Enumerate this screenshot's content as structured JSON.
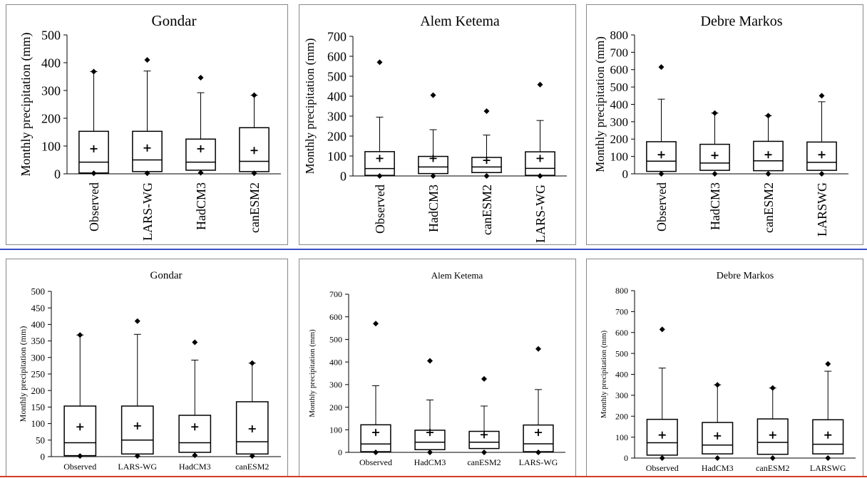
{
  "colors": {
    "frame": "#888888",
    "divider_blue": "#3a4fc4",
    "divider_red": "#d43a2a",
    "ink": "#000000"
  },
  "chart_data": [
    {
      "type": "box",
      "title": "Gondar",
      "ylabel": "Monthly precipitation (mm)",
      "ylim": [
        0,
        500
      ],
      "yticks": [
        0,
        100,
        200,
        300,
        400,
        500
      ],
      "categories": [
        "Observed",
        "LARS-WG",
        "HadCM3",
        "canESM2"
      ],
      "boxes": [
        {
          "min": 2,
          "q1": 3,
          "median": 42,
          "q3": 153,
          "whisker_high": 368,
          "mean": 90,
          "max": 368
        },
        {
          "min": 2,
          "q1": 8,
          "median": 50,
          "q3": 153,
          "whisker_high": 370,
          "mean": 93,
          "max": 410
        },
        {
          "min": 4,
          "q1": 13,
          "median": 42,
          "q3": 125,
          "whisker_high": 292,
          "mean": 90,
          "max": 346
        },
        {
          "min": 2,
          "q1": 8,
          "median": 45,
          "q3": 166,
          "whisker_high": 283,
          "mean": 84,
          "max": 283
        }
      ]
    },
    {
      "type": "box",
      "title": "Alem Ketema",
      "ylabel": "Monthly precipitation (mm)",
      "ylim": [
        0,
        700
      ],
      "yticks": [
        0,
        100,
        200,
        300,
        400,
        500,
        600,
        700
      ],
      "categories": [
        "Observed",
        "HadCM3",
        "canESM2",
        "LARS-WG"
      ],
      "boxes": [
        {
          "min": 0,
          "q1": 3,
          "median": 37,
          "q3": 122,
          "whisker_high": 295,
          "mean": 88,
          "max": 570
        },
        {
          "min": 0,
          "q1": 12,
          "median": 45,
          "q3": 98,
          "whisker_high": 232,
          "mean": 88,
          "max": 405
        },
        {
          "min": 0,
          "q1": 17,
          "median": 45,
          "q3": 93,
          "whisker_high": 205,
          "mean": 78,
          "max": 325
        },
        {
          "min": 0,
          "q1": 3,
          "median": 38,
          "q3": 121,
          "whisker_high": 278,
          "mean": 88,
          "max": 458
        }
      ]
    },
    {
      "type": "box",
      "title": "Debre Markos",
      "ylabel": "Monthly precipitation (mm)",
      "ylim": [
        0,
        800
      ],
      "yticks": [
        0,
        100,
        200,
        300,
        400,
        500,
        600,
        700,
        800
      ],
      "categories": [
        "Observed",
        "HadCM3",
        "canESM2",
        "LARSWG"
      ],
      "boxes": [
        {
          "min": 0,
          "q1": 14,
          "median": 73,
          "q3": 185,
          "whisker_high": 430,
          "mean": 110,
          "max": 615
        },
        {
          "min": 0,
          "q1": 20,
          "median": 62,
          "q3": 170,
          "whisker_high": 350,
          "mean": 106,
          "max": 350
        },
        {
          "min": 0,
          "q1": 18,
          "median": 75,
          "q3": 187,
          "whisker_high": 335,
          "mean": 110,
          "max": 335
        },
        {
          "min": 0,
          "q1": 20,
          "median": 66,
          "q3": 183,
          "whisker_high": 415,
          "mean": 110,
          "max": 450
        }
      ]
    },
    {
      "type": "box",
      "title": "Gondar",
      "ylabel": "Monthly precipitation (mm)",
      "ylim": [
        0,
        500
      ],
      "yticks": [
        0,
        50,
        100,
        150,
        200,
        250,
        300,
        350,
        400,
        450,
        500
      ],
      "categories": [
        "Observed",
        "LARS-WG",
        "HadCM3",
        "canESM2"
      ],
      "boxes": [
        {
          "min": 2,
          "q1": 3,
          "median": 42,
          "q3": 153,
          "whisker_high": 368,
          "mean": 90,
          "max": 368
        },
        {
          "min": 2,
          "q1": 8,
          "median": 50,
          "q3": 153,
          "whisker_high": 370,
          "mean": 93,
          "max": 410
        },
        {
          "min": 4,
          "q1": 13,
          "median": 42,
          "q3": 125,
          "whisker_high": 292,
          "mean": 90,
          "max": 346
        },
        {
          "min": 2,
          "q1": 8,
          "median": 45,
          "q3": 166,
          "whisker_high": 283,
          "mean": 84,
          "max": 283
        }
      ]
    },
    {
      "type": "box",
      "title": "Alem Ketema",
      "ylabel": "Monthly precipitation (mm)",
      "ylim": [
        0,
        700
      ],
      "yticks": [
        0,
        100,
        200,
        300,
        400,
        500,
        600,
        700
      ],
      "categories": [
        "Observed",
        "HadCM3",
        "canESM2",
        "LARS-WG"
      ],
      "boxes": [
        {
          "min": 0,
          "q1": 3,
          "median": 37,
          "q3": 122,
          "whisker_high": 295,
          "mean": 88,
          "max": 570
        },
        {
          "min": 0,
          "q1": 12,
          "median": 45,
          "q3": 98,
          "whisker_high": 232,
          "mean": 88,
          "max": 405
        },
        {
          "min": 0,
          "q1": 17,
          "median": 45,
          "q3": 93,
          "whisker_high": 205,
          "mean": 78,
          "max": 325
        },
        {
          "min": 0,
          "q1": 3,
          "median": 38,
          "q3": 121,
          "whisker_high": 278,
          "mean": 88,
          "max": 458
        }
      ]
    },
    {
      "type": "box",
      "title": "Debre Markos",
      "ylabel": "Monthly precipitation (mm)",
      "ylim": [
        0,
        800
      ],
      "yticks": [
        0,
        100,
        200,
        300,
        400,
        500,
        600,
        700,
        800
      ],
      "categories": [
        "Observed",
        "HadCM3",
        "canESM2",
        "LARSWG"
      ],
      "boxes": [
        {
          "min": 0,
          "q1": 14,
          "median": 73,
          "q3": 185,
          "whisker_high": 430,
          "mean": 110,
          "max": 615
        },
        {
          "min": 0,
          "q1": 20,
          "median": 62,
          "q3": 170,
          "whisker_high": 350,
          "mean": 106,
          "max": 350
        },
        {
          "min": 0,
          "q1": 18,
          "median": 75,
          "q3": 187,
          "whisker_high": 335,
          "mean": 110,
          "max": 335
        },
        {
          "min": 0,
          "q1": 20,
          "median": 66,
          "q3": 183,
          "whisker_high": 415,
          "mean": 110,
          "max": 450
        }
      ]
    }
  ]
}
